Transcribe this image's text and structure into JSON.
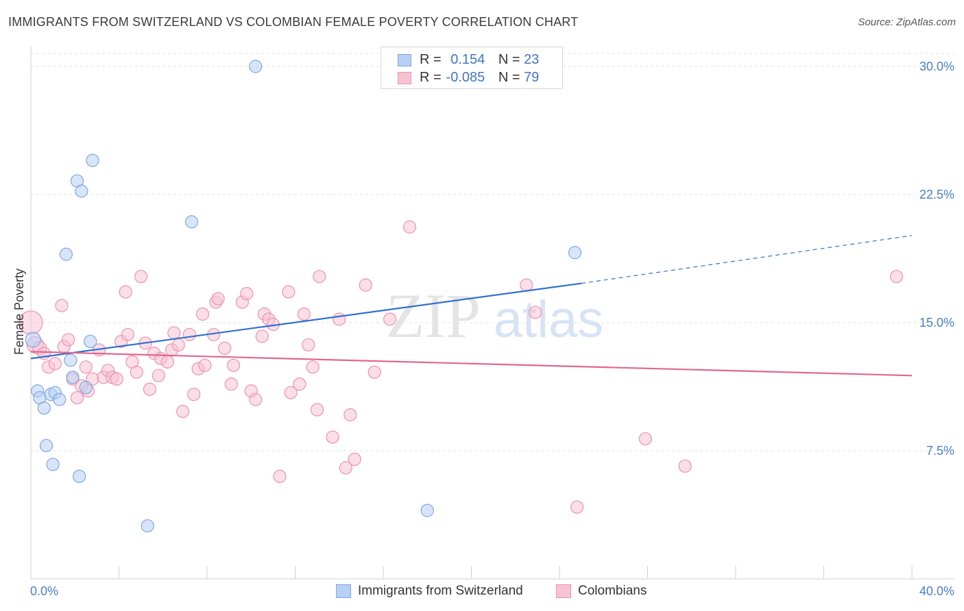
{
  "title": "IMMIGRANTS FROM SWITZERLAND VS COLOMBIAN FEMALE POVERTY CORRELATION CHART",
  "source": "Source: ZipAtlas.com",
  "watermark": {
    "zip": "ZIP",
    "atlas": "atlas"
  },
  "colors": {
    "blue_fill": "#b8d0f4",
    "blue_stroke": "#7fa6e0",
    "blue_line": "#2f6fcf",
    "pink_fill": "#f7c3d3",
    "pink_stroke": "#eb92b0",
    "pink_line": "#e0668f",
    "grid": "#e2e2e2",
    "axis_text": "#4a7ccc"
  },
  "legend": {
    "rows": [
      {
        "r_label": "R =",
        "r_value": "0.154",
        "n_label": "N =",
        "n_value": "23"
      },
      {
        "r_label": "R =",
        "r_value": "-0.085",
        "n_label": "N =",
        "n_value": "79"
      }
    ]
  },
  "bottom_legend": {
    "series1": "Immigrants from Switzerland",
    "series2": "Colombians"
  },
  "chart_data": {
    "type": "scatter",
    "title": "IMMIGRANTS FROM SWITZERLAND VS COLOMBIAN FEMALE POVERTY CORRELATION CHART",
    "xlabel": "",
    "ylabel": "Female Poverty",
    "xlim": [
      0,
      40
    ],
    "ylim": [
      0,
      31.5
    ],
    "x_tick_labels": [
      {
        "value": 0,
        "label": "0.0%"
      },
      {
        "value": 40,
        "label": "40.0%"
      }
    ],
    "y_tick_labels": [
      {
        "value": 7.5,
        "label": "7.5%"
      },
      {
        "value": 15,
        "label": "15.0%"
      },
      {
        "value": 22.5,
        "label": "22.5%"
      },
      {
        "value": 30,
        "label": "30.0%"
      }
    ],
    "series": [
      {
        "name": "Immigrants from Switzerland",
        "color": "blue",
        "r": 0.154,
        "n": 23,
        "trend": {
          "x1": 0,
          "y1": 12.9,
          "x2": 25,
          "y2": 17.3,
          "dash_to_x": 40,
          "dash_to_y": 20.1
        },
        "points": [
          [
            0.1,
            14.0,
            22
          ],
          [
            0.3,
            11.0,
            18
          ],
          [
            0.4,
            10.6,
            18
          ],
          [
            0.6,
            10.0,
            18
          ],
          [
            0.7,
            7.8,
            18
          ],
          [
            0.9,
            10.8,
            18
          ],
          [
            1.0,
            6.7,
            18
          ],
          [
            1.1,
            10.9,
            18
          ],
          [
            1.3,
            10.5,
            18
          ],
          [
            1.6,
            19.0,
            18
          ],
          [
            1.8,
            12.8,
            18
          ],
          [
            1.9,
            11.8,
            18
          ],
          [
            2.1,
            23.3,
            18
          ],
          [
            2.2,
            6.0,
            18
          ],
          [
            2.3,
            22.7,
            18
          ],
          [
            2.5,
            11.2,
            18
          ],
          [
            2.7,
            13.9,
            18
          ],
          [
            2.8,
            24.5,
            18
          ],
          [
            5.3,
            3.1,
            18
          ],
          [
            7.3,
            20.9,
            18
          ],
          [
            10.2,
            30.0,
            18
          ],
          [
            18.0,
            4.0,
            18
          ],
          [
            24.7,
            19.1,
            18
          ]
        ]
      },
      {
        "name": "Colombians",
        "color": "pink",
        "r": -0.085,
        "n": 79,
        "trend": {
          "x1": 0,
          "y1": 13.3,
          "x2": 40,
          "y2": 11.9
        },
        "points": [
          [
            0.0,
            15.0,
            34
          ],
          [
            0.2,
            13.7,
            24
          ],
          [
            0.4,
            13.5,
            20
          ],
          [
            0.6,
            13.2,
            18
          ],
          [
            0.8,
            12.4,
            18
          ],
          [
            1.1,
            12.6,
            18
          ],
          [
            1.4,
            16.0,
            18
          ],
          [
            1.5,
            13.6,
            18
          ],
          [
            1.7,
            14.0,
            18
          ],
          [
            1.9,
            11.7,
            18
          ],
          [
            2.1,
            10.6,
            18
          ],
          [
            2.3,
            11.3,
            18
          ],
          [
            2.5,
            12.4,
            18
          ],
          [
            2.6,
            11.0,
            18
          ],
          [
            2.8,
            11.7,
            18
          ],
          [
            3.1,
            13.4,
            18
          ],
          [
            3.3,
            11.8,
            18
          ],
          [
            3.5,
            12.2,
            18
          ],
          [
            3.7,
            11.8,
            18
          ],
          [
            3.9,
            11.7,
            18
          ],
          [
            4.1,
            13.9,
            18
          ],
          [
            4.3,
            16.8,
            18
          ],
          [
            4.4,
            14.3,
            18
          ],
          [
            4.6,
            12.7,
            18
          ],
          [
            4.8,
            12.1,
            18
          ],
          [
            5.0,
            17.7,
            18
          ],
          [
            5.2,
            13.8,
            18
          ],
          [
            5.4,
            11.1,
            18
          ],
          [
            5.6,
            13.2,
            18
          ],
          [
            5.8,
            11.9,
            18
          ],
          [
            5.9,
            12.9,
            18
          ],
          [
            6.2,
            12.7,
            18
          ],
          [
            6.4,
            13.4,
            18
          ],
          [
            6.5,
            14.4,
            18
          ],
          [
            6.7,
            13.7,
            18
          ],
          [
            6.9,
            9.8,
            18
          ],
          [
            7.2,
            14.3,
            18
          ],
          [
            7.4,
            10.8,
            18
          ],
          [
            7.6,
            12.3,
            18
          ],
          [
            7.9,
            12.5,
            18
          ],
          [
            7.8,
            15.5,
            18
          ],
          [
            8.3,
            14.3,
            18
          ],
          [
            8.4,
            16.2,
            18
          ],
          [
            8.5,
            16.4,
            18
          ],
          [
            8.8,
            13.5,
            18
          ],
          [
            9.1,
            11.4,
            18
          ],
          [
            9.2,
            12.5,
            18
          ],
          [
            9.6,
            16.2,
            18
          ],
          [
            9.8,
            16.7,
            18
          ],
          [
            10.0,
            11.0,
            18
          ],
          [
            10.2,
            10.5,
            18
          ],
          [
            10.5,
            14.2,
            18
          ],
          [
            10.6,
            15.5,
            18
          ],
          [
            10.8,
            15.2,
            18
          ],
          [
            11.0,
            14.9,
            18
          ],
          [
            11.3,
            6.0,
            18
          ],
          [
            11.7,
            16.8,
            18
          ],
          [
            11.8,
            10.9,
            18
          ],
          [
            12.2,
            11.4,
            18
          ],
          [
            12.4,
            15.5,
            18
          ],
          [
            12.6,
            13.7,
            18
          ],
          [
            12.8,
            12.4,
            18
          ],
          [
            13.0,
            9.9,
            18
          ],
          [
            13.1,
            17.7,
            18
          ],
          [
            13.7,
            8.3,
            18
          ],
          [
            14.0,
            15.2,
            18
          ],
          [
            14.3,
            6.5,
            18
          ],
          [
            14.5,
            9.6,
            18
          ],
          [
            14.7,
            7.0,
            18
          ],
          [
            15.2,
            17.2,
            18
          ],
          [
            15.6,
            12.1,
            18
          ],
          [
            16.3,
            15.2,
            18
          ],
          [
            17.2,
            20.6,
            18
          ],
          [
            22.5,
            17.2,
            18
          ],
          [
            22.9,
            15.6,
            18
          ],
          [
            24.8,
            4.2,
            18
          ],
          [
            27.9,
            8.2,
            18
          ],
          [
            29.7,
            6.6,
            18
          ],
          [
            39.3,
            17.7,
            18
          ]
        ]
      }
    ]
  }
}
